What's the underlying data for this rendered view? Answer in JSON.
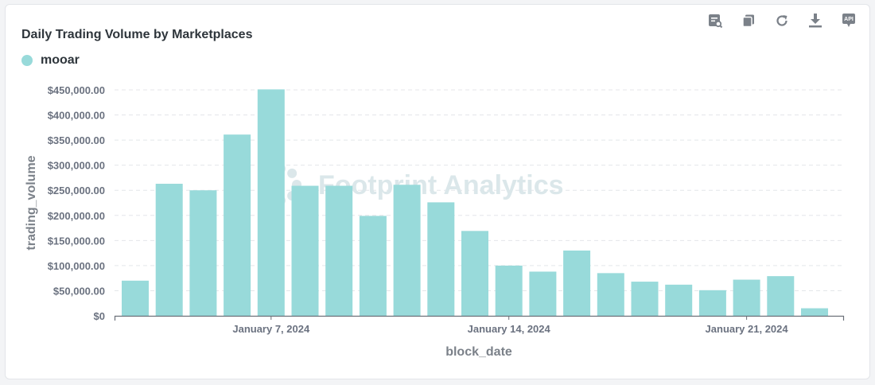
{
  "card": {
    "title": "Daily Trading Volume by Marketplaces",
    "watermark": "Footprint Analytics",
    "toolbar": [
      {
        "name": "view-data-icon",
        "label": ""
      },
      {
        "name": "copy-icon",
        "label": ""
      },
      {
        "name": "refresh-icon",
        "label": ""
      },
      {
        "name": "download-icon",
        "label": ""
      },
      {
        "name": "api-icon",
        "label": "API"
      }
    ]
  },
  "colors": {
    "bar": "#98dada",
    "axis": "#6b7078",
    "tick_text": "#6b7280",
    "grid": "#e4e6ea",
    "icon": "#7b8189",
    "watermark": "#dbe7ea"
  },
  "chart_data": {
    "type": "bar",
    "title": "Daily Trading Volume by Marketplaces",
    "xlabel": "block_date",
    "ylabel": "trading_volume",
    "ylim": [
      0,
      450000
    ],
    "yticks": [
      0,
      50000,
      100000,
      150000,
      200000,
      250000,
      300000,
      350000,
      400000,
      450000
    ],
    "ytick_labels": [
      "$0",
      "$50,000.00",
      "$100,000.00",
      "$150,000.00",
      "$200,000.00",
      "$250,000.00",
      "$300,000.00",
      "$350,000.00",
      "$400,000.00",
      "$450,000.00"
    ],
    "grid": true,
    "legend": "top-left",
    "x_tick_labels": [
      {
        "date": "2024-01-07",
        "label": "January 7, 2024"
      },
      {
        "date": "2024-01-14",
        "label": "January 14, 2024"
      },
      {
        "date": "2024-01-21",
        "label": "January 21, 2024"
      }
    ],
    "categories": [
      "2024-01-03",
      "2024-01-04",
      "2024-01-05",
      "2024-01-06",
      "2024-01-07",
      "2024-01-08",
      "2024-01-09",
      "2024-01-10",
      "2024-01-11",
      "2024-01-12",
      "2024-01-13",
      "2024-01-14",
      "2024-01-15",
      "2024-01-16",
      "2024-01-17",
      "2024-01-18",
      "2024-01-19",
      "2024-01-20",
      "2024-01-21",
      "2024-01-22",
      "2024-01-23"
    ],
    "series": [
      {
        "name": "mooar",
        "values": [
          70000,
          263000,
          250000,
          361000,
          451000,
          259000,
          259000,
          199000,
          261000,
          226000,
          169000,
          100000,
          88000,
          130000,
          85000,
          68000,
          62000,
          51000,
          72000,
          79000,
          15000
        ]
      }
    ]
  }
}
